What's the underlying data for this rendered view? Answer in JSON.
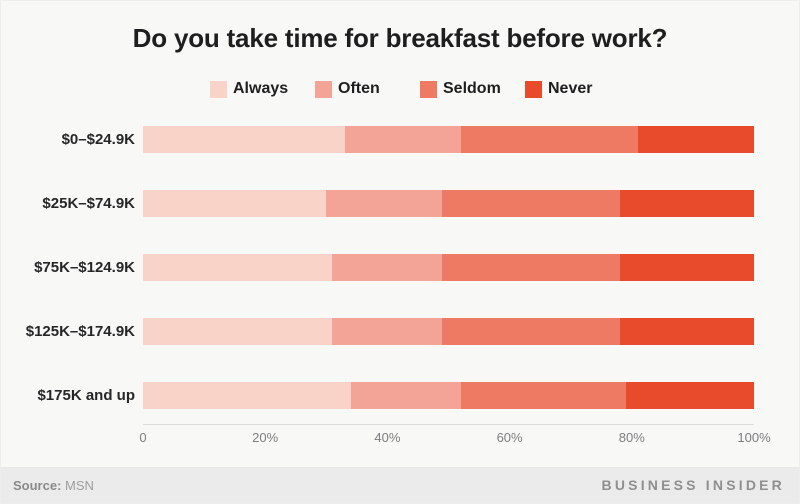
{
  "chart_data": {
    "type": "bar",
    "variant": "horizontal-stacked-100",
    "title": "Do you take time for breakfast before work?",
    "categories": [
      "$0–$24.9K",
      "$25K–$74.9K",
      "$75K–$124.9K",
      "$125K–$174.9K",
      "$175K and up"
    ],
    "series": [
      {
        "name": "Always",
        "color": "#f9d3c7",
        "values": [
          33,
          30,
          31,
          31,
          34
        ]
      },
      {
        "name": "Often",
        "color": "#f4a496",
        "values": [
          19,
          19,
          18,
          18,
          18
        ]
      },
      {
        "name": "Seldom",
        "color": "#ee7a63",
        "values": [
          29,
          29,
          29,
          29,
          27
        ]
      },
      {
        "name": "Never",
        "color": "#e74b2c",
        "values": [
          19,
          22,
          22,
          22,
          21
        ]
      }
    ],
    "x_ticks": [
      "0",
      "20%",
      "40%",
      "60%",
      "80%",
      "100%"
    ],
    "xlim": [
      0,
      100
    ],
    "xlabel": "",
    "ylabel": "",
    "grid": false,
    "legend_position": "top"
  },
  "colors": {
    "background": "#f8f8f7",
    "footer_background": "#ebebeb",
    "title_text": "#1e1e1e",
    "axis_line": "#dcdcdc",
    "tick_text": "#7d7d7d"
  },
  "footer": {
    "source_label": "Source:",
    "source_value": "MSN",
    "brand": "BUSINESS INSIDER"
  }
}
